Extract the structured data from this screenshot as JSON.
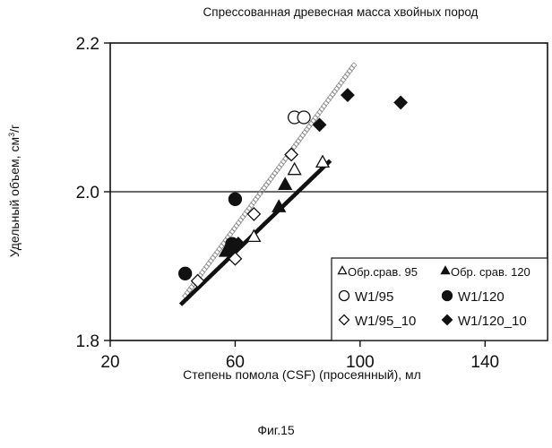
{
  "chart_data": {
    "type": "scatter",
    "title": "Спрессованная древесная масса хвойных пород",
    "xlabel": "Степень помола  (CSF) (просеянный), мл",
    "ylabel_prefix": "Удельный объем, см",
    "ylabel_sup": "3",
    "ylabel_suffix": "/г",
    "figure_label": "Фиг.15",
    "xlim": [
      20,
      160
    ],
    "ylim": [
      1.8,
      2.2
    ],
    "xticks": [
      "20",
      "60",
      "100",
      "140"
    ],
    "xtick_values": [
      20,
      60,
      100,
      140
    ],
    "yticks": [
      "1.8",
      "2.0",
      "2.2"
    ],
    "ytick_values": [
      1.8,
      2.0,
      2.2
    ],
    "reference_line_y": 2.0,
    "grid": false,
    "legend_position": "bottom-right",
    "series": [
      {
        "name": "Обр.срав. 95",
        "marker": "open-triangle",
        "points": [
          [
            66,
            1.94
          ],
          [
            79,
            2.03
          ],
          [
            88,
            2.04
          ]
        ]
      },
      {
        "name": "Обр. срав. 120",
        "marker": "filled-triangle",
        "points": [
          [
            57,
            1.92
          ],
          [
            76,
            2.01
          ],
          [
            74,
            1.98
          ]
        ]
      },
      {
        "name": "W1/95",
        "marker": "open-circle",
        "points": [
          [
            79,
            2.1
          ],
          [
            82,
            2.1
          ]
        ]
      },
      {
        "name": "W1/120",
        "marker": "filled-circle",
        "points": [
          [
            44,
            1.89
          ],
          [
            60,
            1.99
          ],
          [
            59,
            1.93
          ]
        ]
      },
      {
        "name": "W1/95_10",
        "marker": "open-diamond",
        "points": [
          [
            48,
            1.88
          ],
          [
            60,
            1.91
          ],
          [
            66,
            1.97
          ],
          [
            78,
            2.05
          ]
        ]
      },
      {
        "name": "W1/120_10",
        "marker": "filled-diamond",
        "points": [
          [
            58,
            1.92
          ],
          [
            61,
            1.93
          ],
          [
            87,
            2.09
          ],
          [
            96,
            2.13
          ],
          [
            113,
            2.12
          ]
        ]
      }
    ],
    "trend_lines": [
      {
        "style": "open-dense",
        "points": [
          [
            44,
            1.86
          ],
          [
            98,
            2.17
          ]
        ]
      },
      {
        "style": "filled-dense",
        "points": [
          [
            43,
            1.85
          ],
          [
            90,
            2.04
          ]
        ]
      }
    ]
  }
}
